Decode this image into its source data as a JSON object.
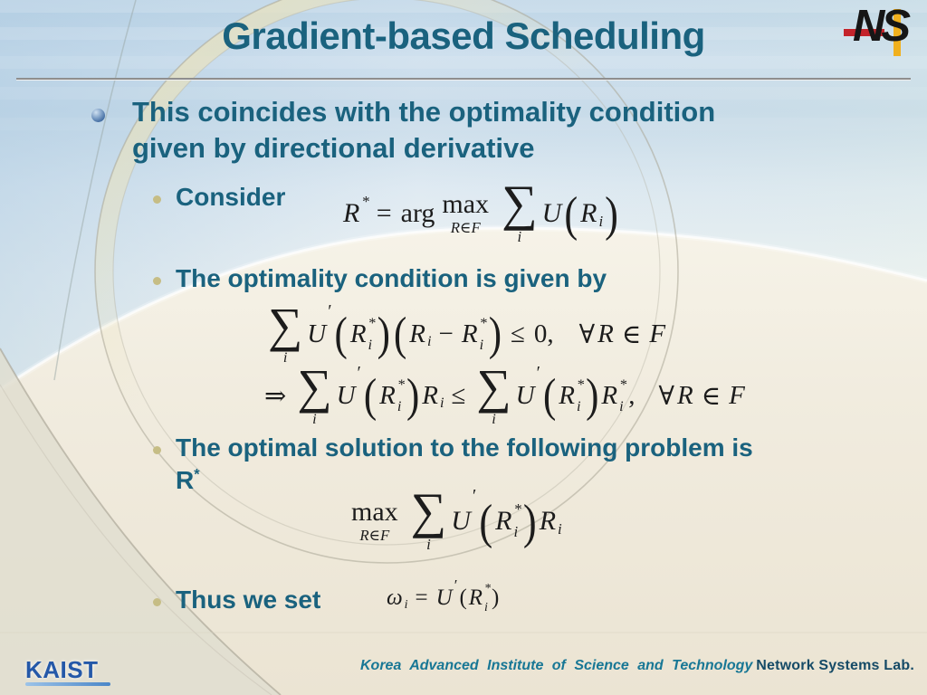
{
  "slide": {
    "title": "Gradient-based Scheduling",
    "bullet": {
      "line1": "This coincides with the optimality condition",
      "line2": "given by directional derivative"
    },
    "sub": {
      "consider": "Consider",
      "optimality": "The optimality condition is given by",
      "solution_line1": "The optimal solution to the following problem is",
      "solution_r": "R",
      "solution_r_sup": "*",
      "thus": "Thus we set"
    },
    "formulas": {
      "consider": {
        "alt": "R* = arg max_{R∈F} ∑_i U(R_i)",
        "tokens": [
          [
            "vss",
            "R",
            "",
            "*"
          ],
          [
            "o",
            "="
          ],
          [
            "t",
            "arg"
          ],
          [
            "sp",
            4
          ],
          [
            "lim",
            "max",
            "R∈F"
          ],
          [
            "sp",
            8
          ],
          [
            "sum",
            "i"
          ],
          [
            "v",
            "U"
          ],
          [
            "p",
            "("
          ],
          [
            "vs",
            "R",
            "i"
          ],
          [
            "p",
            ")"
          ]
        ]
      },
      "optimality1": {
        "alt": "∑_i U′(R_i*)(R_i − R_i*) ≤ 0,  ∀R ∈ F",
        "tokens": [
          [
            "sum",
            "i"
          ],
          [
            "v",
            "U"
          ],
          [
            "pr"
          ],
          [
            "p",
            "("
          ],
          [
            "vss",
            "R",
            "i",
            "*"
          ],
          [
            "p",
            ")"
          ],
          [
            "p",
            "("
          ],
          [
            "vs",
            "R",
            "i"
          ],
          [
            "o",
            "−"
          ],
          [
            "vss",
            "R",
            "i",
            "*"
          ],
          [
            "p",
            ")"
          ],
          [
            "o",
            "≤"
          ],
          [
            "t",
            "0,"
          ],
          [
            "sp",
            24
          ],
          [
            "t",
            "∀"
          ],
          [
            "v",
            "R"
          ],
          [
            "o",
            "∈"
          ],
          [
            "v",
            "F"
          ]
        ]
      },
      "optimality2": {
        "alt": "⇒ ∑_i U′(R_i*)R_i ≤ ∑_i U′(R_i*)R_i*,  ∀R ∈ F",
        "tokens": [
          [
            "o",
            "⇒"
          ],
          [
            "sum",
            "i"
          ],
          [
            "v",
            "U"
          ],
          [
            "pr"
          ],
          [
            "p",
            "("
          ],
          [
            "vss",
            "R",
            "i",
            "*"
          ],
          [
            "p",
            ")"
          ],
          [
            "vs",
            "R",
            "i"
          ],
          [
            "o",
            "≤"
          ],
          [
            "sum",
            "i"
          ],
          [
            "v",
            "U"
          ],
          [
            "pr"
          ],
          [
            "p",
            "("
          ],
          [
            "vss",
            "R",
            "i",
            "*"
          ],
          [
            "p",
            ")"
          ],
          [
            "vss",
            "R",
            "i",
            "*"
          ],
          [
            "t",
            ","
          ],
          [
            "sp",
            22
          ],
          [
            "t",
            "∀"
          ],
          [
            "v",
            "R"
          ],
          [
            "o",
            "∈"
          ],
          [
            "v",
            "F"
          ]
        ]
      },
      "max_problem": {
        "alt": "max_{R∈F} ∑_i U′(R_i*)R_i",
        "tokens": [
          [
            "lim",
            "max",
            "R∈F"
          ],
          [
            "sp",
            8
          ],
          [
            "sum",
            "i"
          ],
          [
            "v",
            "U"
          ],
          [
            "pr"
          ],
          [
            "p",
            "("
          ],
          [
            "vss",
            "R",
            "i",
            "*"
          ],
          [
            "p",
            ")"
          ],
          [
            "vs",
            "R",
            "i"
          ]
        ]
      },
      "weight": {
        "alt": "ω_i = U′(R_i*)",
        "tokens": [
          [
            "vs",
            "ω",
            "i"
          ],
          [
            "o",
            "="
          ],
          [
            "v",
            "U"
          ],
          [
            "pr"
          ],
          [
            "pn",
            "("
          ],
          [
            "vss",
            "R",
            "i",
            "*"
          ],
          [
            "pn",
            ")"
          ]
        ]
      }
    },
    "logos": {
      "ns": "NS",
      "kaist": "KAIST"
    },
    "footer": {
      "institute": "Korea Advanced Institute of Science and Technology",
      "lab": "Network Systems Lab."
    },
    "colors": {
      "title_teal": "#1a627e",
      "body_teal": "#1a627e",
      "formula_ink": "#1c1c1c",
      "bullet_khaki": "#c6bd85",
      "kaist_blue": "#2458a8",
      "footer_teal": "#187795",
      "footer_navy": "#154a66",
      "ns_red": "#c4242b",
      "ns_yellow": "#f0b01e"
    }
  }
}
